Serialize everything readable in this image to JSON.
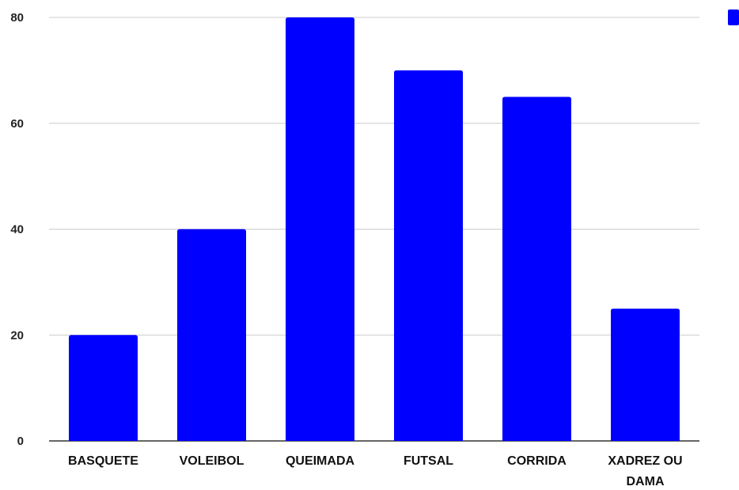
{
  "chart_data": {
    "type": "bar",
    "categories": [
      "BASQUETE",
      "VOLEIBOL",
      "QUEIMADA",
      "FUTSAL",
      "CORRIDA",
      "XADREZ OU DAMA"
    ],
    "series": [
      {
        "values": [
          20,
          40,
          80,
          70,
          65,
          25
        ],
        "color": "#0000FF"
      }
    ],
    "title": "",
    "xlabel": "",
    "ylabel": "",
    "ylim": [
      0,
      80
    ],
    "yticks": [
      "0",
      "20",
      "40",
      "60",
      "80"
    ],
    "grid": true,
    "legend": "top-right"
  }
}
